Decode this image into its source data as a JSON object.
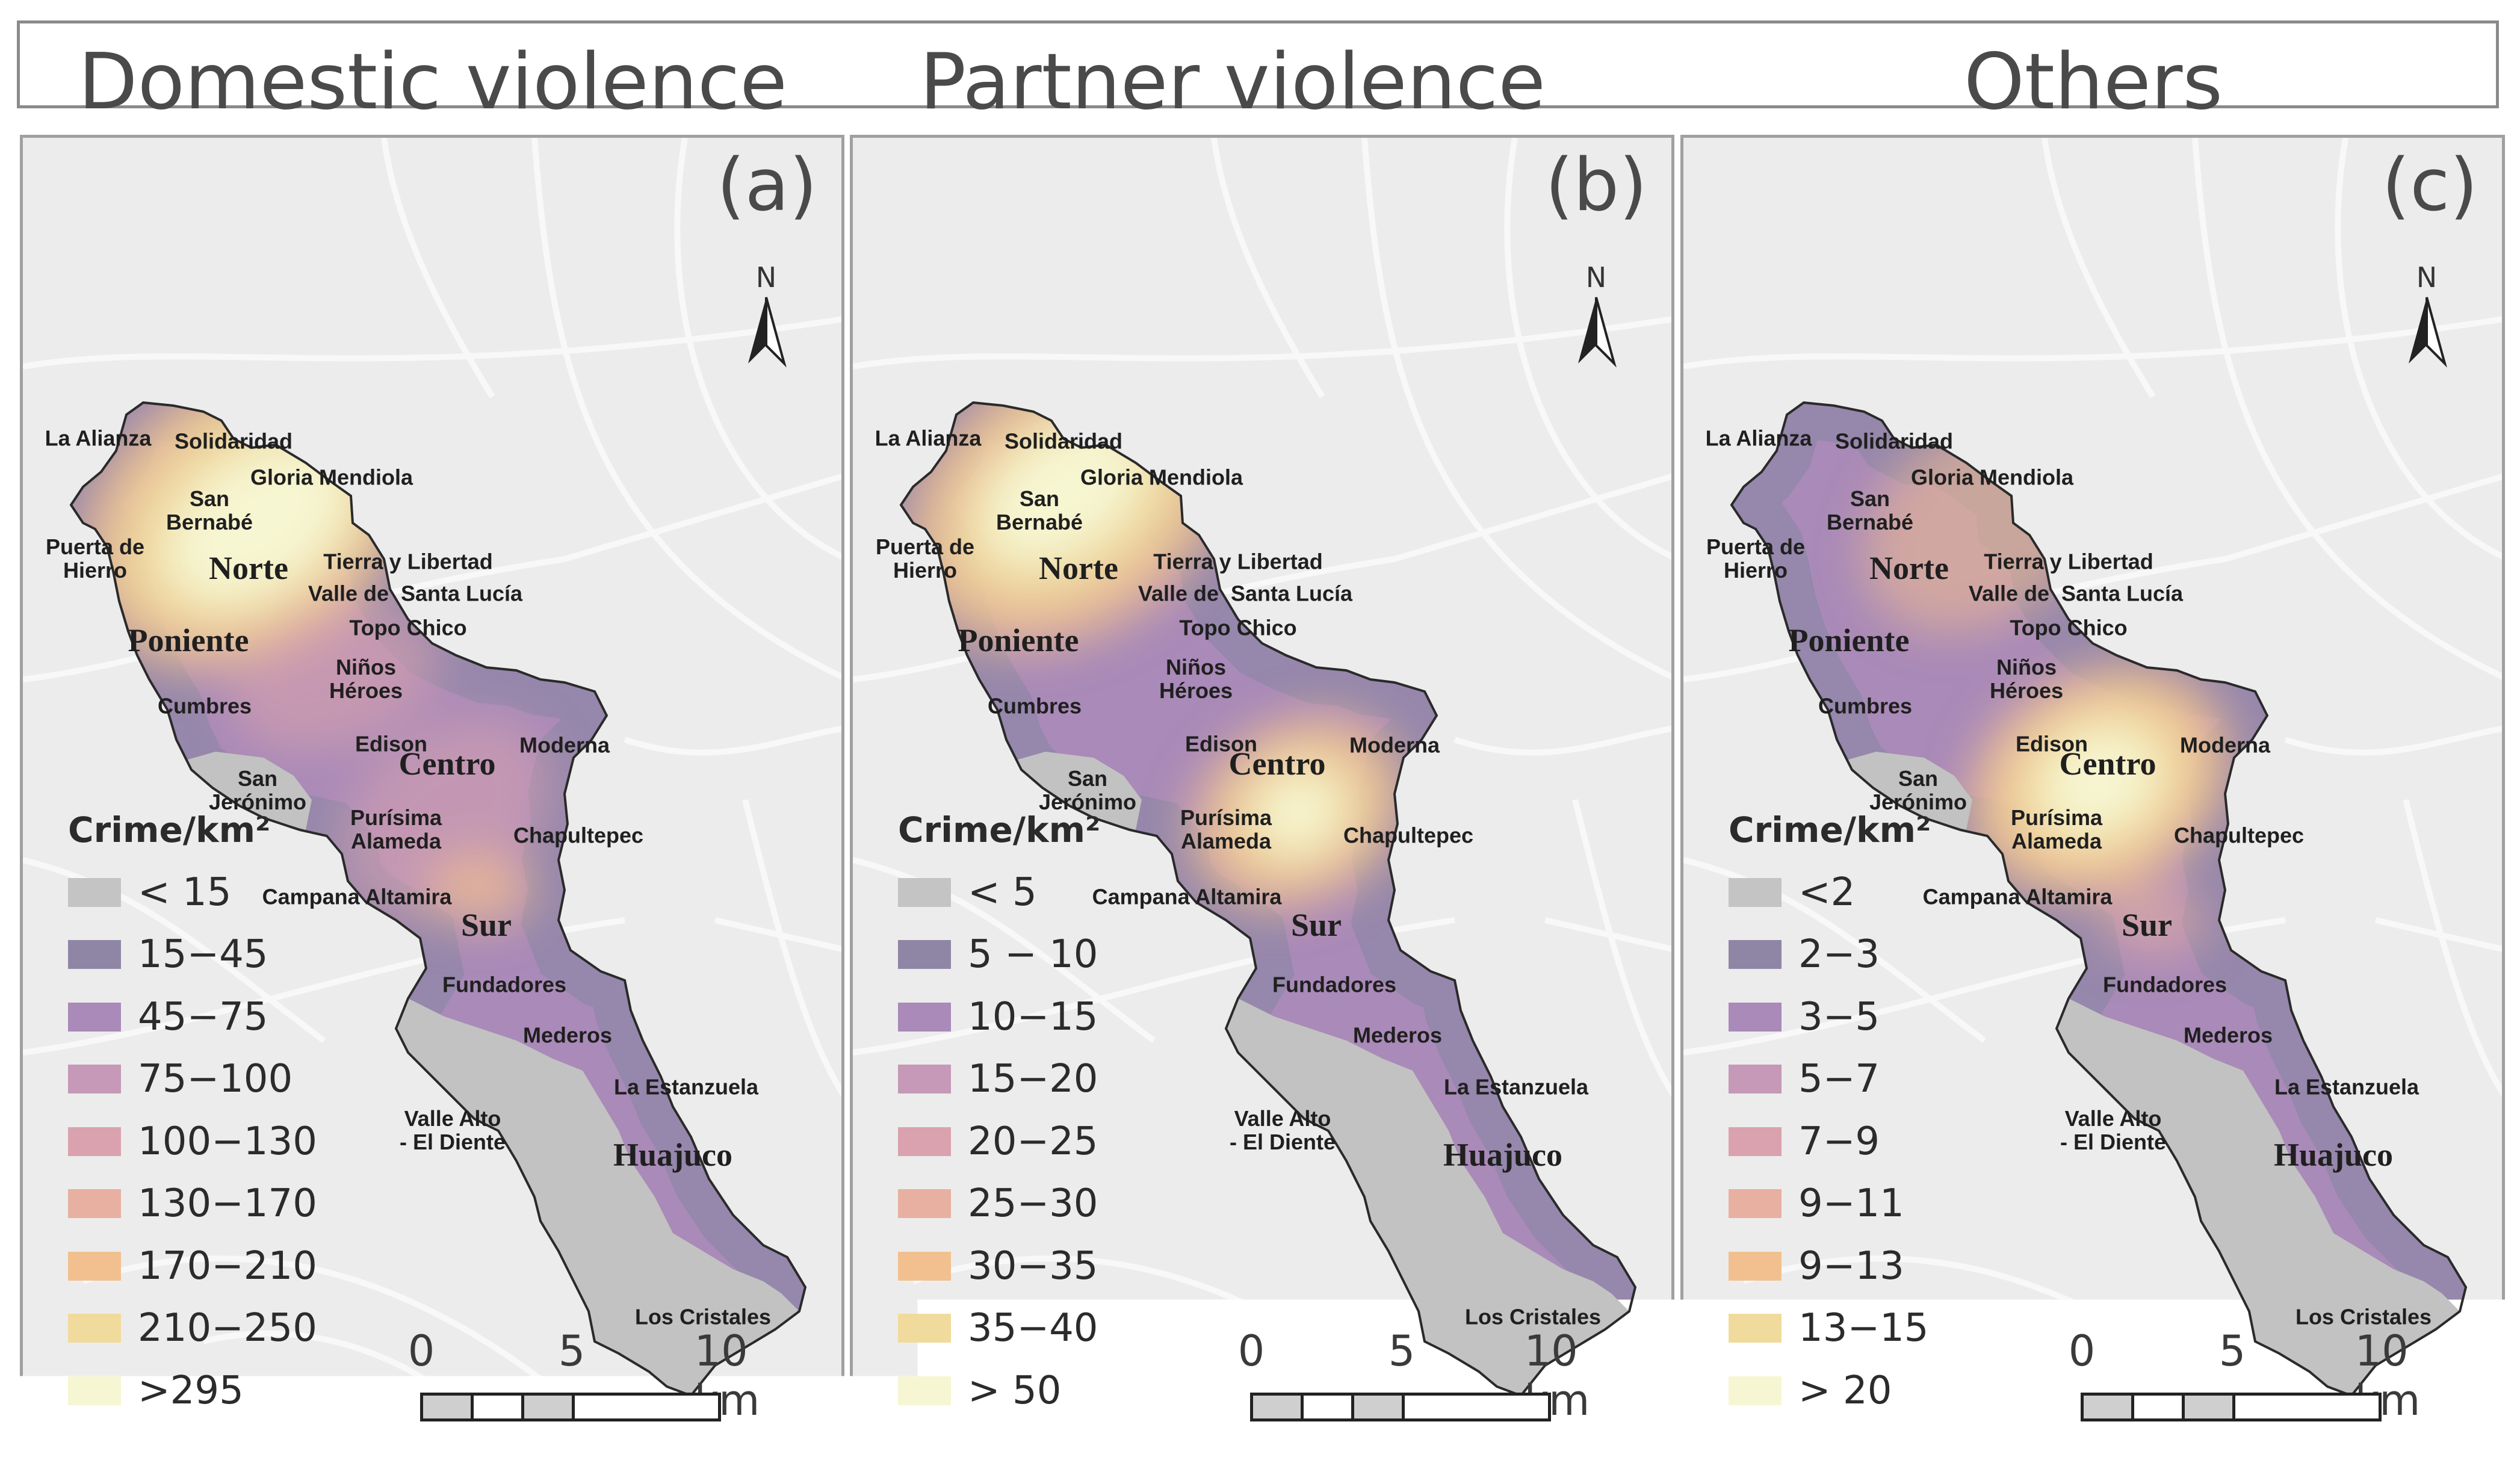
{
  "headers": [
    "Domestic violence",
    "Partner violence",
    "Others"
  ],
  "colors": {
    "bg": "#ececec",
    "road": "#f8f8f8",
    "below": "#c2c2c2",
    "ramp": [
      "#c4c4c4",
      "#8f86a6",
      "#a98ab8",
      "#c599b7",
      "#d9a2ae",
      "#e8b0a0",
      "#f2c08e",
      "#f1db9c",
      "#f6f6d2"
    ]
  },
  "north_label": "N",
  "legend_title": "Crime/km²",
  "scale": {
    "labels": [
      "0",
      "5",
      "10 km"
    ]
  },
  "panels": [
    {
      "letter": "(a)",
      "legend": [
        "< 15",
        "15−45",
        "45−75",
        "75−100",
        "100−130",
        "130−170",
        "170−210",
        "210−250",
        ">295"
      ],
      "hotspot": "norte"
    },
    {
      "letter": "(b)",
      "legend": [
        "< 5",
        "5 − 10",
        "10−15",
        "15−20",
        "20−25",
        "25−30",
        "30−35",
        "35−40",
        ">  50"
      ],
      "hotspot": "norte-centro"
    },
    {
      "letter": "(c)",
      "legend": [
        "<2",
        "2−3",
        "3−5",
        "5−7",
        "7−9",
        "9−11",
        "9−13",
        "13−15",
        "> 20"
      ],
      "hotspot": "centro"
    }
  ],
  "places": {
    "la_alianza": "La Alianza",
    "solidaridad": "Solidaridad",
    "gloria": "Gloria Mendiola",
    "san_bernabe": "San\nBernabé",
    "puerta": "Puerta de\nHierro",
    "tierra": "Tierra y Libertad",
    "valle_sl": "Valle de  Santa Lucía",
    "topo": "Topo Chico",
    "ninos": "Niños\nHéroes",
    "cumbres": "Cumbres",
    "edison": "Edison",
    "moderna": "Moderna",
    "san_jeronimo": "San\nJerónimo",
    "purisima": "Purísima\nAlameda",
    "chapultepec": "Chapultepec",
    "campana": "Campana Altamira",
    "fundadores": "Fundadores",
    "mederos": "Mederos",
    "estanzuela": "La Estanzuela",
    "valle_alto": "Valle Alto\n- El Diente",
    "cristales": "Los Cristales"
  },
  "districts": {
    "norte": "Norte",
    "poniente": "Poniente",
    "centro": "Centro",
    "sur": "Sur",
    "huajuco": "Huajuco"
  }
}
